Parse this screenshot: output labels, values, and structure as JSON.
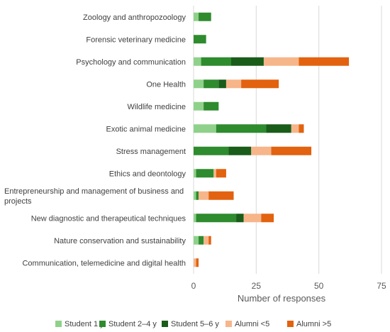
{
  "chart_data": {
    "type": "bar",
    "orientation": "horizontal",
    "stacked": true,
    "categories": [
      "Zoology and anthropozoology",
      "Forensic veterinary medicine",
      "Psychology and communication",
      "One Health",
      "Wildlife medicine",
      "Exotic animal medicine",
      "Stress management",
      "Ethics and deontology",
      "Entrepreneurship and management of business and projects",
      "New diagnostic and therapeutical techniques",
      "Nature conservation and sustainability",
      "Communication, telemedicine and digital health"
    ],
    "category_label_lines": [
      [
        "Zoology and anthropozoology"
      ],
      [
        "Forensic veterinary medicine"
      ],
      [
        "Psychology and communication"
      ],
      [
        "One Health"
      ],
      [
        "Wildlife medicine"
      ],
      [
        "Exotic animal medicine"
      ],
      [
        "Stress management"
      ],
      [
        "Ethics and deontology"
      ],
      [
        "Entrepreneurship and management of business and",
        "projects"
      ],
      [
        "New diagnostic and therapeutical techniques"
      ],
      [
        "Nature conservation and sustainability"
      ],
      [
        "Communication, telemedicine and digital health"
      ]
    ],
    "series": [
      {
        "name": "Student 1 y",
        "color": "#8fd18a",
        "values": [
          2,
          0,
          3,
          4,
          4,
          9,
          0,
          1,
          1,
          1,
          2,
          0
        ]
      },
      {
        "name": "Student 2–4 y",
        "color": "#2e8b2e",
        "values": [
          5,
          5,
          12,
          6,
          6,
          20,
          14,
          7,
          1,
          16,
          2,
          0
        ]
      },
      {
        "name": "Student 5–6 y",
        "color": "#1a5c1a",
        "values": [
          0,
          0,
          13,
          3,
          0,
          10,
          9,
          0,
          0,
          3,
          0,
          0
        ]
      },
      {
        "name": "Alumni <5",
        "color": "#f7b58a",
        "values": [
          0,
          0,
          14,
          6,
          0,
          3,
          8,
          1,
          4,
          7,
          2,
          1
        ]
      },
      {
        "name": "Alumni >5",
        "color": "#e2620f",
        "values": [
          0,
          0,
          20,
          15,
          0,
          2,
          16,
          4,
          10,
          5,
          1,
          1
        ]
      }
    ],
    "xlabel": "Number of responses",
    "xlim": [
      0,
      75
    ],
    "xticks": [
      0,
      25,
      50,
      75
    ],
    "grid": true,
    "legend": "bottom"
  }
}
